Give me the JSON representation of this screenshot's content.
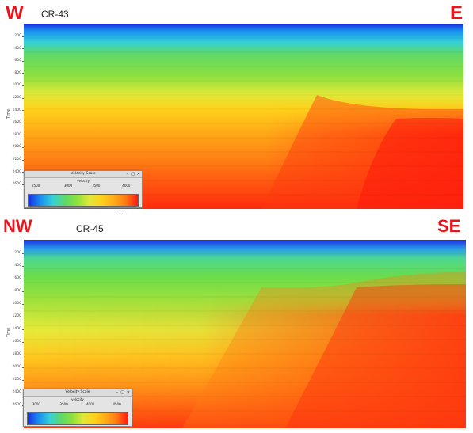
{
  "top": {
    "dir_left": "W",
    "dir_right": "E",
    "line_label": "CR-43",
    "y_axis_label": "Time",
    "ticks": [
      "200",
      "400",
      "600",
      "800",
      "1000",
      "1200",
      "1400",
      "1600",
      "1800",
      "2000",
      "2200",
      "2400",
      "2600"
    ],
    "velocity_scale": {
      "title": "Velocity Scale",
      "subtitle": "velocity",
      "ticks": [
        "2500",
        "3000",
        "3500",
        "4000"
      ],
      "controls": [
        "–",
        "□",
        "✕"
      ]
    }
  },
  "bottom": {
    "dir_left": "NW",
    "dir_right": "SE",
    "line_label": "CR-45",
    "y_axis_label": "Time",
    "ticks": [
      "200",
      "400",
      "600",
      "800",
      "1000",
      "1200",
      "1400",
      "1600",
      "1800",
      "2000",
      "2200",
      "2400",
      "2600"
    ],
    "velocity_scale": {
      "title": "Velocity Scale",
      "subtitle": "velocity",
      "ticks": [
        "3000",
        "3500",
        "4000",
        "4500"
      ],
      "controls": [
        "–",
        "□",
        "✕"
      ]
    }
  },
  "colors": {
    "direction_labels": "#e8161c",
    "velocity_low": "#1a2ee0",
    "velocity_mid": "#3fd23a",
    "velocity_high": "#ff1a10"
  }
}
